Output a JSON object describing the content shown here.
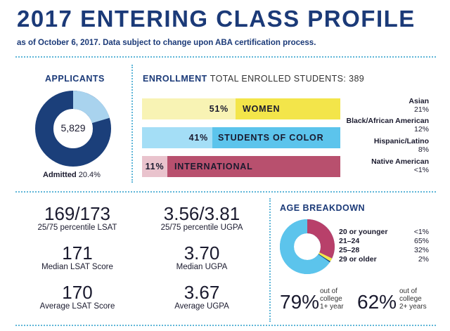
{
  "header": {
    "title": "2017 ENTERING CLASS PROFILE",
    "subtitle": "as of October 6, 2017. Data subject to change upon ABA certification process."
  },
  "applicants": {
    "label": "APPLICANTS",
    "total": "5,829",
    "admitted_label": "Admitted",
    "admitted_value": "20.4%",
    "admitted_fraction": 0.204,
    "colors": {
      "main": "#1b3f7a",
      "admitted": "#a9d3ee"
    }
  },
  "enrollment": {
    "label": "ENROLLMENT",
    "sublabel": "TOTAL ENROLLED STUDENTS: 389",
    "bars": [
      {
        "pct": "51%",
        "label": "WOMEN",
        "fraction": 0.51,
        "color": "#f3e54a",
        "light": "#f8f3b4"
      },
      {
        "pct": "41%",
        "label": "STUDENTS OF COLOR",
        "fraction": 0.41,
        "color": "#5cc4ec",
        "light": "#a4def6"
      },
      {
        "pct": "11%",
        "label": "INTERNATIONAL",
        "fraction": 0.11,
        "color": "#b8506e",
        "light": "#e9c3cd"
      }
    ],
    "demographics": [
      {
        "name": "Asian",
        "value": "21%"
      },
      {
        "name": "Black/African American",
        "value": "12%"
      },
      {
        "name": "Hispanic/Latino",
        "value": "8%"
      },
      {
        "name": "Native American",
        "value": "<1%"
      }
    ]
  },
  "stats": {
    "lsat_2575": {
      "value": "169/173",
      "label": "25/75 percentile LSAT"
    },
    "ugpa_2575": {
      "value": "3.56/3.81",
      "label": "25/75 percentile UGPA"
    },
    "lsat_median": {
      "value": "171",
      "label": "Median LSAT Score"
    },
    "ugpa_median": {
      "value": "3.70",
      "label": "Median UGPA"
    },
    "lsat_avg": {
      "value": "170",
      "label": "Average LSAT Score"
    },
    "ugpa_avg": {
      "value": "3.67",
      "label": "Average UGPA"
    }
  },
  "age": {
    "label": "AGE BREAKDOWN",
    "rows": [
      {
        "label": "20 or younger",
        "value": "<1%",
        "fraction": 0.005,
        "color": "#1b3f7a"
      },
      {
        "label": "21–24",
        "value": "65%",
        "fraction": 0.65,
        "color": "#5cc4ec"
      },
      {
        "label": "25–28",
        "value": "32%",
        "fraction": 0.32,
        "color": "#b8406a"
      },
      {
        "label": "29 or older",
        "value": "2%",
        "fraction": 0.02,
        "color": "#f3e54a"
      }
    ],
    "out_1yr": {
      "value": "79%",
      "note1": "out of",
      "note2": "college",
      "note3": "1+ year"
    },
    "out_2yr": {
      "value": "62%",
      "note1": "out of",
      "note2": "college",
      "note3": "2+ years"
    }
  }
}
